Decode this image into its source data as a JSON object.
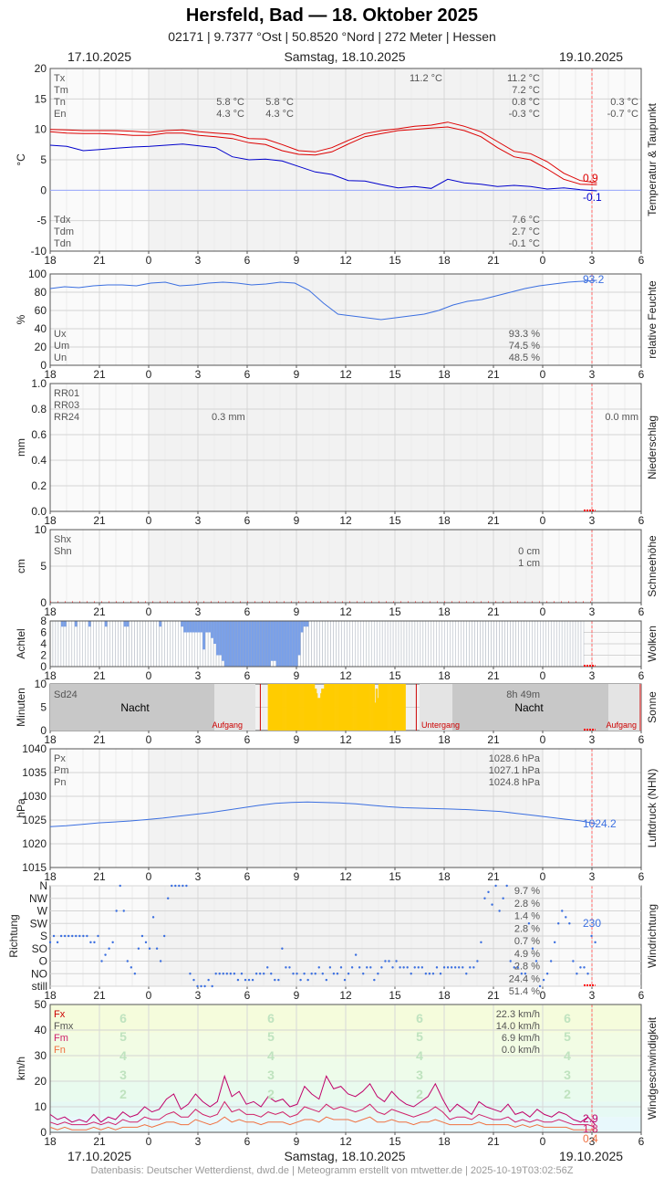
{
  "header": {
    "title": "Hersfeld, Bad  —  18. Oktober 2025",
    "subtitle": "02171  |  9.7377 °Ost  |  50.8520 °Nord  |  272 Meter  |  Hessen"
  },
  "dates": {
    "left": "17.10.2025",
    "center": "Samstag, 18.10.2025",
    "right": "19.10.2025"
  },
  "footer": "Datenbasis: Deutscher Wetterdienst, dwd.de | Meteogramm erstellt von mtwetter.de | 2025-10-19T03:02:56Z",
  "x_axis": {
    "ticks": [
      "18",
      "21",
      "0",
      "3",
      "6",
      "9",
      "12",
      "15",
      "18",
      "21",
      "0",
      "3",
      "6"
    ]
  },
  "colors": {
    "temp": "#dd0000",
    "dew": "#0000cc",
    "blue": "#3b6fe0",
    "grid": "#dddddd",
    "now": "#ff6666"
  },
  "chart_data": [
    {
      "type": "line",
      "panel": "temperature",
      "ylabel": "°C",
      "side_label": "Temperatur & Taupunkt",
      "ylim": [
        -10,
        20
      ],
      "yticks": [
        "20",
        "15",
        "10",
        "5",
        "0",
        "-5",
        "-10"
      ],
      "x_hours_from_18h_17oct": [
        0,
        1,
        2,
        3,
        4,
        5,
        6,
        7,
        8,
        9,
        10,
        11,
        12,
        13,
        14,
        15,
        16,
        17,
        18,
        19,
        20,
        21,
        22,
        23,
        24,
        25,
        26,
        27,
        28,
        29,
        30,
        31,
        32,
        33
      ],
      "series": [
        {
          "name": "Tx",
          "values": [
            10.0,
            9.9,
            9.8,
            9.8,
            9.8,
            9.7,
            9.5,
            9.8,
            9.9,
            9.6,
            9.4,
            9.2,
            8.5,
            8.4,
            7.5,
            6.5,
            6.3,
            7.0,
            8.2,
            9.3,
            9.8,
            10.1,
            10.5,
            10.7,
            11.2,
            10.5,
            9.6,
            8.0,
            6.4,
            6.0,
            4.7,
            2.8,
            1.6,
            1.2
          ]
        },
        {
          "name": "Tn",
          "values": [
            9.6,
            9.4,
            9.3,
            9.3,
            9.2,
            9.0,
            9.0,
            9.4,
            9.4,
            9.0,
            8.8,
            8.5,
            7.8,
            7.5,
            6.5,
            5.9,
            5.8,
            6.3,
            7.6,
            8.8,
            9.3,
            9.8,
            10.0,
            10.2,
            10.4,
            9.8,
            8.8,
            7.0,
            5.5,
            5.0,
            3.5,
            1.8,
            1.0,
            0.9
          ]
        },
        {
          "name": "Td",
          "values": [
            7.4,
            7.2,
            6.5,
            6.7,
            6.9,
            7.1,
            7.2,
            7.4,
            7.6,
            7.3,
            7.0,
            5.5,
            5.0,
            5.1,
            4.8,
            3.9,
            3.0,
            2.6,
            1.6,
            1.5,
            0.9,
            0.4,
            0.6,
            0.3,
            1.8,
            1.2,
            1.0,
            0.6,
            0.8,
            0.6,
            0.2,
            0.4,
            0.1,
            -0.1
          ]
        }
      ],
      "labels_left": [
        "Tx",
        "Tm",
        "Tn",
        "En"
      ],
      "labels_left_dew": [
        "Tdx",
        "Tdm",
        "Tdn"
      ],
      "values_prev": [
        "5.8 °C",
        "4.3 °C"
      ],
      "values_prev2": [
        "5.8 °C",
        "4.3 °C"
      ],
      "value_top_mid": "11.2 °C",
      "values_day": [
        "11.2 °C",
        "7.2 °C",
        "0.8 °C",
        "-0.3 °C"
      ],
      "values_next": [
        "0.3 °C",
        "-0.7 °C"
      ],
      "values_dew": [
        "7.6 °C",
        "2.7 °C",
        "-0.1 °C"
      ],
      "current_temp": "0.9",
      "current_dew": "-0.1"
    },
    {
      "type": "line",
      "panel": "humidity",
      "ylabel": "%",
      "side_label": "relative Feuchte",
      "ylim": [
        0,
        100
      ],
      "yticks": [
        "100",
        "80",
        "60",
        "40",
        "20",
        "0"
      ],
      "series": [
        {
          "name": "rF",
          "values": [
            84,
            86,
            85,
            87,
            88,
            88,
            87,
            90,
            91,
            87,
            88,
            90,
            91,
            90,
            88,
            89,
            91,
            90,
            82,
            68,
            56,
            54,
            52,
            50,
            52,
            54,
            56,
            60,
            66,
            70,
            72,
            76,
            80,
            84,
            87,
            89,
            91,
            92,
            93
          ]
        }
      ],
      "labels_left": [
        "Ux",
        "Um",
        "Un"
      ],
      "values_day": [
        "93.3 %",
        "74.5 %",
        "48.5 %"
      ],
      "current": "93.2"
    },
    {
      "type": "bar",
      "panel": "precipitation",
      "ylabel": "mm",
      "side_label": "Niederschlag",
      "ylim": [
        0,
        1.0
      ],
      "yticks": [
        "1.0",
        "0.8",
        "0.6",
        "0.4",
        "0.2",
        "0.0"
      ],
      "labels_left": [
        "RR01",
        "RR03",
        "RR24"
      ],
      "value_prev": "0.3 mm",
      "value_next": "0.0 mm",
      "values": []
    },
    {
      "type": "bar",
      "panel": "snow",
      "ylabel": "cm",
      "side_label": "Schneehöhe",
      "ylim": [
        0,
        10
      ],
      "yticks": [
        "10",
        "5",
        "0"
      ],
      "labels_left": [
        "Shx",
        "Shn"
      ],
      "values_day": [
        "0 cm",
        "1 cm"
      ],
      "values": []
    },
    {
      "type": "bar",
      "panel": "clouds",
      "ylabel": "Achtel",
      "side_label": "Wolken",
      "ylim": [
        0,
        8
      ],
      "yticks": [
        "8",
        "6",
        "4",
        "2",
        "0"
      ],
      "values": [
        8,
        8,
        8,
        8,
        7,
        7,
        8,
        8,
        8,
        7,
        8,
        8,
        8,
        8,
        7,
        8,
        8,
        8,
        8,
        8,
        7,
        8,
        8,
        8,
        8,
        8,
        8,
        7,
        7,
        8,
        8,
        8,
        8,
        8,
        8,
        8,
        8,
        8,
        8,
        8,
        7,
        8,
        8,
        8,
        8,
        8,
        8,
        8,
        7,
        6,
        6,
        6,
        6,
        6,
        6,
        6,
        3,
        6,
        6,
        5,
        4,
        2,
        2,
        1,
        0,
        0,
        0,
        0,
        0,
        0,
        0,
        0,
        0,
        0,
        0,
        0,
        0,
        0,
        0,
        0,
        0,
        1,
        1,
        0,
        0,
        0,
        0,
        0,
        0,
        0,
        0,
        2,
        6,
        7,
        7,
        8,
        8,
        8,
        8,
        8,
        8,
        8,
        8,
        8,
        8,
        8,
        8,
        8,
        8,
        8,
        8,
        8,
        8,
        8,
        8,
        8,
        8,
        8,
        8,
        8,
        8,
        8,
        8,
        8,
        8,
        8,
        8,
        8,
        8,
        8,
        8,
        8,
        8,
        8,
        8,
        8,
        8,
        8,
        8,
        8,
        8,
        8,
        8,
        8,
        8,
        8,
        8,
        8,
        8,
        8,
        8,
        8,
        8,
        8,
        8,
        8,
        8,
        8,
        8,
        8,
        8,
        8,
        8,
        8,
        8,
        8,
        8,
        8,
        8,
        8,
        8,
        8,
        8,
        8,
        8,
        8,
        8,
        8,
        8,
        8,
        8,
        8,
        8,
        8,
        8,
        8,
        8,
        8,
        8,
        8,
        8,
        8,
        8,
        8,
        8,
        8
      ]
    },
    {
      "type": "bar",
      "panel": "sunshine",
      "ylabel": "Minuten",
      "side_label": "Sonne",
      "ylim": [
        0,
        10
      ],
      "yticks": [
        "10",
        "5",
        "0"
      ],
      "label_left": "Sd24",
      "value_day": "8h 49m",
      "night_label": "Nacht",
      "sunrise_label": "Aufgang",
      "sunset_label": "Untergang",
      "values": [
        0,
        10,
        10,
        10,
        10,
        10,
        10,
        10,
        10,
        10,
        10,
        10,
        10,
        10,
        10,
        10,
        10,
        10,
        10,
        10,
        10,
        10,
        10,
        10,
        10,
        10,
        10,
        10,
        10,
        10,
        10,
        10,
        10,
        10,
        10,
        10,
        10,
        10,
        10,
        10,
        10,
        10,
        10,
        10,
        10,
        10,
        10,
        10,
        10,
        10,
        10,
        9,
        9,
        8,
        7,
        7,
        7,
        8,
        9,
        9,
        9,
        10,
        10,
        10,
        10,
        10,
        10,
        10,
        10,
        10,
        10,
        10,
        10,
        10,
        10,
        10,
        10,
        10,
        10,
        10,
        10,
        10,
        10,
        10,
        10,
        10,
        10,
        10,
        10,
        10,
        10,
        10,
        10,
        10,
        10,
        10,
        10,
        10,
        10,
        10,
        10,
        10,
        10,
        10,
        10,
        10,
        10,
        10,
        10,
        10,
        10,
        10,
        10,
        10,
        10,
        6,
        9,
        9,
        7,
        10,
        10,
        10,
        10,
        10,
        10,
        10,
        10,
        10,
        10,
        10,
        10,
        10,
        10,
        10,
        10,
        10,
        10,
        10,
        10,
        10,
        10,
        10,
        10,
        10,
        10,
        10,
        10,
        10,
        0
      ]
    },
    {
      "type": "line",
      "panel": "pressure",
      "ylabel": "hPa",
      "side_label": "Luftdruck (NHN)",
      "ylim": [
        1015,
        1040
      ],
      "yticks": [
        "1040",
        "1035",
        "1030",
        "1025",
        "1020",
        "1015"
      ],
      "series": [
        {
          "name": "p",
          "values": [
            1023.6,
            1023.8,
            1024.1,
            1024.4,
            1024.6,
            1024.8,
            1025.1,
            1025.4,
            1025.8,
            1026.2,
            1026.6,
            1027.1,
            1027.6,
            1028.1,
            1028.5,
            1028.7,
            1028.8,
            1028.7,
            1028.6,
            1028.4,
            1028.1,
            1027.8,
            1027.6,
            1027.5,
            1027.4,
            1027.3,
            1027.2,
            1027.0,
            1026.8,
            1026.4,
            1026.0,
            1025.6,
            1025.2,
            1024.8,
            1024.2
          ]
        }
      ],
      "labels_left": [
        "Px",
        "Pm",
        "Pn"
      ],
      "values_day": [
        "1028.6 hPa",
        "1027.1 hPa",
        "1024.8 hPa"
      ],
      "current": "1024.2"
    },
    {
      "type": "scatter",
      "panel": "wind_direction",
      "ylabel": "Richtung",
      "side_label": "Windrichtung",
      "categories": [
        "N",
        "NW",
        "W",
        "SW",
        "S",
        "SO",
        "O",
        "NO",
        "still"
      ],
      "values_pct": [
        "9.7 %",
        "2.8 %",
        "1.4 %",
        "2.8 %",
        "0.7 %",
        "4.9 %",
        "2.8 %",
        "24.4 %",
        "51.4 %"
      ],
      "values": [
        3.5,
        4,
        3.5,
        4,
        4,
        4,
        4,
        4,
        4,
        4,
        4,
        3.5,
        3.5,
        4,
        2,
        2.5,
        3,
        3.5,
        6,
        8,
        6,
        2,
        1.5,
        1,
        3,
        4,
        3.5,
        3,
        5.5,
        3,
        2,
        4,
        7,
        8,
        8,
        8,
        8,
        8,
        1,
        0.5,
        0,
        0,
        0,
        0.5,
        0,
        1,
        1,
        1,
        1,
        1,
        1,
        0.5,
        1,
        0.5,
        0.5,
        0.5,
        1,
        1,
        1,
        1.5,
        1,
        0.5,
        0.5,
        3,
        1.5,
        1.5,
        1,
        1,
        0.5,
        1,
        0.5,
        1,
        1,
        1.5,
        1,
        0.5,
        1.5,
        1,
        1,
        1.5,
        0.5,
        1,
        1.5,
        2.5,
        1.5,
        1,
        1.5,
        1.5,
        0.5,
        1,
        1.5,
        2,
        2,
        1.5,
        2,
        1.5,
        1.5,
        1.5,
        1,
        1.5,
        1.5,
        1.5,
        1,
        1,
        1,
        1.5,
        1,
        1.5,
        1.5,
        1.5,
        1.5,
        1.5,
        1.5,
        1,
        1.5,
        1.5,
        2,
        3.5,
        7,
        7.5,
        6.5,
        8,
        6,
        7,
        8,
        2,
        1.5,
        1.5,
        1,
        1,
        5,
        3,
        2,
        0,
        0.5,
        1,
        2,
        3.5,
        5,
        6,
        5.5,
        5,
        2,
        1,
        1.5,
        1.5,
        1,
        4,
        3.5
      ],
      "current": "230"
    },
    {
      "type": "line",
      "panel": "wind_speed",
      "ylabel": "km/h",
      "side_label": "Windgeschwindigkeit",
      "ylim": [
        0,
        50
      ],
      "yticks": [
        "50",
        "40",
        "30",
        "20",
        "10",
        "0"
      ],
      "bft_labels": [
        "6",
        "5",
        "4",
        "3",
        "2"
      ],
      "series": [
        {
          "name": "Fx",
          "values": [
            7,
            5,
            6,
            4,
            5,
            4,
            7,
            4,
            6,
            5,
            8,
            6,
            7,
            10,
            8,
            9,
            13,
            15,
            9,
            11,
            15,
            12,
            10,
            12,
            22,
            14,
            16,
            11,
            12,
            10,
            14,
            12,
            13,
            10,
            11,
            18,
            15,
            13,
            22,
            17,
            18,
            15,
            14,
            16,
            19,
            14,
            12,
            16,
            13,
            11,
            10,
            12,
            14,
            19,
            13,
            8,
            11,
            9,
            7,
            12,
            10,
            9,
            8,
            11,
            7,
            8,
            6,
            9,
            7,
            6,
            8,
            7,
            5,
            4,
            6,
            3
          ]
        },
        {
          "name": "Fm",
          "values": [
            4,
            3,
            4,
            3,
            3,
            3,
            4,
            3,
            4,
            3,
            5,
            4,
            4,
            6,
            5,
            5,
            7,
            8,
            6,
            6,
            9,
            7,
            6,
            7,
            12,
            8,
            9,
            7,
            7,
            6,
            8,
            7,
            8,
            6,
            7,
            10,
            9,
            8,
            11,
            9,
            10,
            9,
            8,
            9,
            11,
            8,
            7,
            9,
            8,
            7,
            6,
            7,
            8,
            10,
            8,
            5,
            6,
            6,
            5,
            7,
            6,
            5,
            5,
            6,
            4,
            5,
            4,
            5,
            4,
            4,
            5,
            4,
            3,
            3,
            3,
            2
          ]
        },
        {
          "name": "Fn",
          "values": [
            2,
            1,
            2,
            1,
            1,
            1,
            2,
            1,
            2,
            1,
            2,
            2,
            2,
            3,
            2,
            3,
            4,
            4,
            3,
            3,
            5,
            4,
            3,
            4,
            6,
            4,
            5,
            4,
            4,
            3,
            4,
            4,
            4,
            3,
            4,
            5,
            5,
            4,
            6,
            5,
            5,
            5,
            4,
            5,
            6,
            4,
            4,
            5,
            4,
            4,
            3,
            4,
            4,
            5,
            4,
            3,
            3,
            3,
            3,
            4,
            3,
            3,
            3,
            3,
            2,
            3,
            2,
            3,
            2,
            2,
            2,
            2,
            1,
            1,
            1,
            1
          ]
        }
      ],
      "labels_left": [
        "Fx",
        "Fmx",
        "Fm",
        "Fn"
      ],
      "values_day": [
        "22.3 km/h",
        "14.0 km/h",
        "6.9 km/h",
        "0.0 km/h"
      ],
      "current": [
        "2.9",
        "1.8",
        "0.4"
      ]
    }
  ]
}
